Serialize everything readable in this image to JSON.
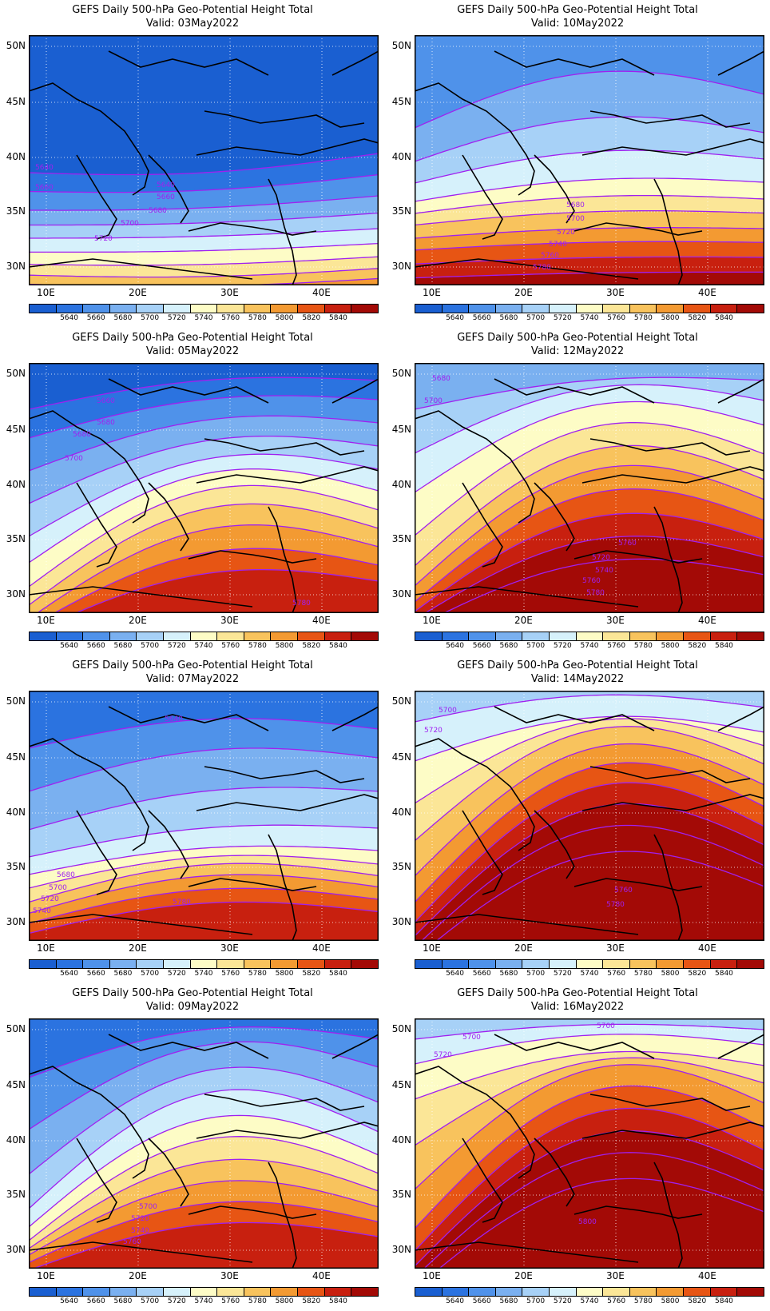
{
  "colors": [
    "#1a5fd1",
    "#2b73e0",
    "#4f92ea",
    "#7ab0f0",
    "#a7d1f7",
    "#d6f1fb",
    "#fdfcc6",
    "#fbe697",
    "#f8c35d",
    "#f39a32",
    "#e75514",
    "#c8200f",
    "#a30a06"
  ],
  "contour_color": "#a020f0",
  "colorbar_labels": [
    "5640",
    "5660",
    "5680",
    "5700",
    "5720",
    "5740",
    "5760",
    "5780",
    "5800",
    "5820",
    "5840"
  ],
  "lon_labels": [
    "10E",
    "20E",
    "30E",
    "40E"
  ],
  "lat_labels": [
    "50N",
    "45N",
    "40N",
    "35N",
    "30N"
  ],
  "panels": [
    {
      "title": "GEFS Daily 500-hPa Geo-Potential Height Total",
      "valid": "Valid: 03May2022",
      "contour_labels": [
        "5640",
        "5660",
        "5640",
        "5660",
        "5680",
        "5700",
        "5720"
      ]
    },
    {
      "title": "GEFS Daily 500-hPa Geo-Potential Height Total",
      "valid": "Valid: 10May2022",
      "contour_labels": [
        "5680",
        "5700",
        "5720",
        "5740",
        "5760",
        "5780"
      ]
    },
    {
      "title": "GEFS Daily 500-hPa Geo-Potential Height Total",
      "valid": "Valid: 05May2022",
      "contour_labels": [
        "5660",
        "5680",
        "5680",
        "5700",
        "5780"
      ]
    },
    {
      "title": "GEFS Daily 500-hPa Geo-Potential Height Total",
      "valid": "Valid: 12May2022",
      "contour_labels": [
        "5680",
        "5700",
        "5760",
        "5720",
        "5740",
        "5760",
        "5780"
      ]
    },
    {
      "title": "GEFS Daily 500-hPa Geo-Potential Height Total",
      "valid": "Valid: 07May2022",
      "contour_labels": [
        "5640",
        "5680",
        "5700",
        "5720",
        "5740",
        "5780"
      ]
    },
    {
      "title": "GEFS Daily 500-hPa Geo-Potential Height Total",
      "valid": "Valid: 14May2022",
      "contour_labels": [
        "5700",
        "5720",
        "5760",
        "5780"
      ]
    },
    {
      "title": "GEFS Daily 500-hPa Geo-Potential Height Total",
      "valid": "Valid: 09May2022",
      "contour_labels": [
        "5700",
        "5720",
        "5740",
        "5760"
      ]
    },
    {
      "title": "GEFS Daily 500-hPa Geo-Potential Height Total",
      "valid": "Valid: 16May2022",
      "contour_labels": [
        "5700",
        "5700",
        "5720",
        "5800"
      ]
    }
  ]
}
